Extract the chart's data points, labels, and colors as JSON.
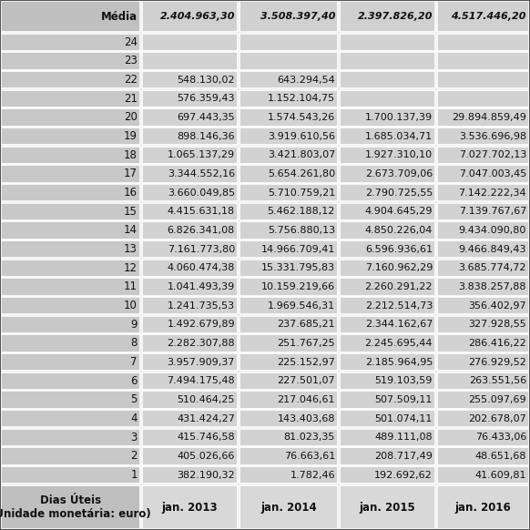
{
  "header_col": "Dias Úteis\n(Unidade monetária: euro)",
  "columns": [
    "jan. 2013",
    "jan. 2014",
    "jan. 2015",
    "jan. 2016"
  ],
  "rows": [
    [
      1,
      "382.190,32",
      "1.782,46",
      "192.692,62",
      "41.609,81"
    ],
    [
      2,
      "405.026,66",
      "76.663,61",
      "208.717,49",
      "48.651,68"
    ],
    [
      3,
      "415.746,58",
      "81.023,35",
      "489.111,08",
      "76.433,06"
    ],
    [
      4,
      "431.424,27",
      "143.403,68",
      "501.074,11",
      "202.678,07"
    ],
    [
      5,
      "510.464,25",
      "217.046,61",
      "507.509,11",
      "255.097,69"
    ],
    [
      6,
      "7.494.175,48",
      "227.501,07",
      "519.103,59",
      "263.551,56"
    ],
    [
      7,
      "3.957.909,37",
      "225.152,97",
      "2.185.964,95",
      "276.929,52"
    ],
    [
      8,
      "2.282.307,88",
      "251.767,25",
      "2.245.695,44",
      "286.416,22"
    ],
    [
      9,
      "1.492.679,89",
      "237.685,21",
      "2.344.162,67",
      "327.928,55"
    ],
    [
      10,
      "1.241.735,53",
      "1.969.546,31",
      "2.212.514,73",
      "356.402,97"
    ],
    [
      11,
      "1.041.493,39",
      "10.159.219,66",
      "2.260.291,22",
      "3.838.257,88"
    ],
    [
      12,
      "4.060.474,38",
      "15.331.795,83",
      "7.160.962,29",
      "3.685.774,72"
    ],
    [
      13,
      "7.161.773,80",
      "14.966.709,41",
      "6.596.936,61",
      "9.466.849,43"
    ],
    [
      14,
      "6.826.341,08",
      "5.756.880,13",
      "4.850.226,04",
      "9.434.090,80"
    ],
    [
      15,
      "4.415.631,18",
      "5.462.188,12",
      "4.904.645,29",
      "7.139.767,67"
    ],
    [
      16,
      "3.660.049,85",
      "5.710.759,21",
      "2.790.725,55",
      "7.142.222,34"
    ],
    [
      17,
      "3.344.552,16",
      "5.654.261,80",
      "2.673.709,06",
      "7.047.003,45"
    ],
    [
      18,
      "1.065.137,29",
      "3.421.803,07",
      "1.927.310,10",
      "7.027.702,13"
    ],
    [
      19,
      "898.146,36",
      "3.919.610,56",
      "1.685.034,71",
      "3.536.696,98"
    ],
    [
      20,
      "697.443,35",
      "1.574.543,26",
      "1.700.137,39",
      "29.894.859,49"
    ],
    [
      21,
      "576.359,43",
      "1.152.104,75",
      "",
      ""
    ],
    [
      22,
      "548.130,02",
      "643.294,54",
      "",
      ""
    ],
    [
      23,
      "",
      "",
      "",
      ""
    ],
    [
      24,
      "",
      "",
      "",
      ""
    ]
  ],
  "media": [
    "2.404.963,30",
    "3.508.397,40",
    "2.397.826,20",
    "4.517.446,20"
  ],
  "bg_header_col0": "#c0c0c0",
  "bg_header_data": "#d8d8d8",
  "bg_data_row": "#c8c8c8",
  "bg_data_cells": "#d8d8d8",
  "bg_footer": "#c8c8c8",
  "bg_footer_data": "#d0d0d0",
  "border_color": "#ffffff",
  "text_dark": "#1a1a1a"
}
